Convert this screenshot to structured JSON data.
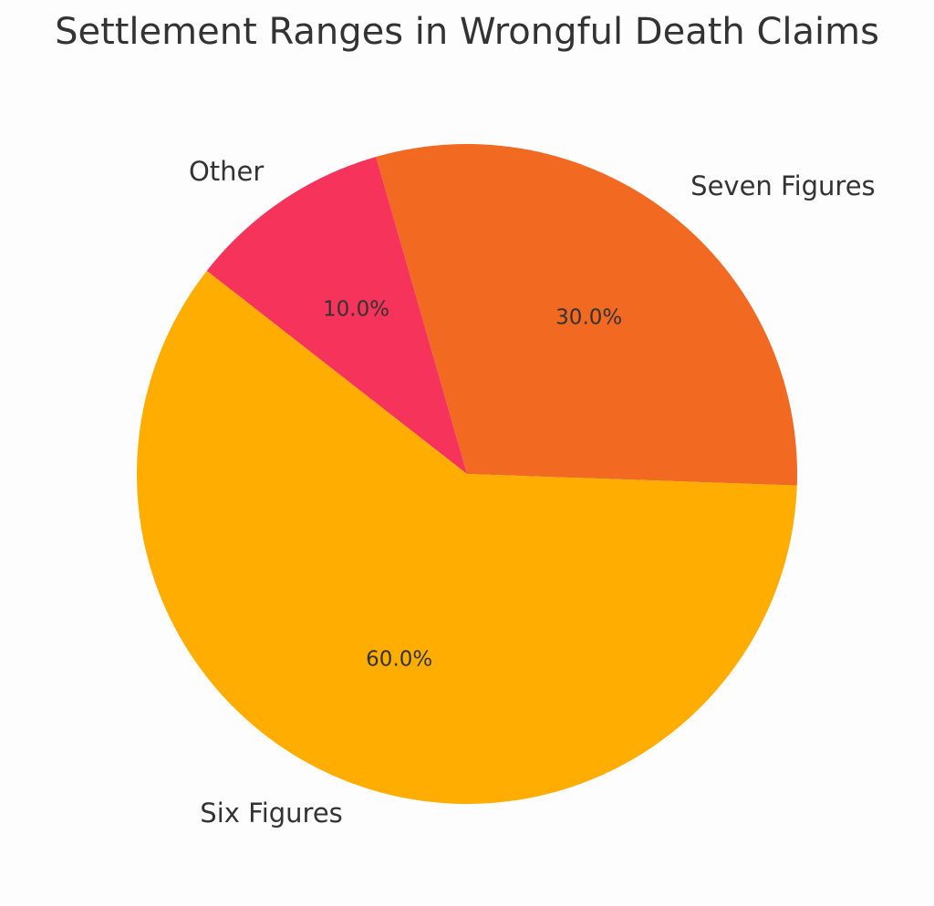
{
  "chart_data": {
    "type": "pie",
    "title": "Settlement Ranges in Wrongful Death Claims",
    "slices": [
      {
        "label": "Seven Figures",
        "value": 30.0,
        "pct_label": "30.0%",
        "color": "#f26a22"
      },
      {
        "label": "Other",
        "value": 10.0,
        "pct_label": "10.0%",
        "color": "#f5335b"
      },
      {
        "label": "Six Figures",
        "value": 60.0,
        "pct_label": "60.0%",
        "color": "#ffad00"
      }
    ],
    "start_angle_deg": -2,
    "direction": "counterclockwise",
    "legend": "none"
  }
}
